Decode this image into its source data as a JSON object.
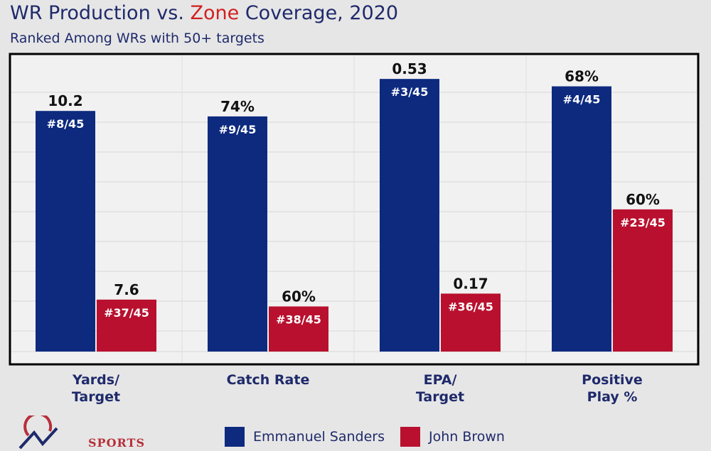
{
  "title_parts": {
    "before": "WR Production vs. ",
    "highlight": "Zone",
    "after": " Coverage, 2020"
  },
  "subtitle": "Ranked Among WRs with 50+ targets",
  "colors": {
    "sanders": "#0d2a7f",
    "brown": "#b8102e",
    "title": "#1f2a6b",
    "highlight": "#d21f1f"
  },
  "chart_data": {
    "type": "bar",
    "categories": [
      {
        "lines": [
          "Yards/",
          "Target"
        ]
      },
      {
        "lines": [
          "Catch Rate"
        ]
      },
      {
        "lines": [
          "EPA/",
          "Target"
        ]
      },
      {
        "lines": [
          "Positive",
          "Play %"
        ]
      }
    ],
    "series": [
      {
        "name": "Emmanuel Sanders",
        "fractions": [
          0.88,
          0.86,
          0.997,
          0.97
        ],
        "value_labels": [
          "10.2",
          "74%",
          "0.53",
          "68%"
        ],
        "rank_labels": [
          "#8/45",
          "#9/45",
          "#3/45",
          "#4/45"
        ]
      },
      {
        "name": "John Brown",
        "fractions": [
          0.19,
          0.165,
          0.212,
          0.52
        ],
        "value_labels": [
          "7.6",
          "60%",
          "0.17",
          "60%"
        ],
        "rank_labels": [
          "#37/45",
          "#38/45",
          "#36/45",
          "#23/45"
        ]
      }
    ],
    "legend_position": "bottom",
    "grid": true
  },
  "logo": {
    "text": "SPORTS"
  }
}
